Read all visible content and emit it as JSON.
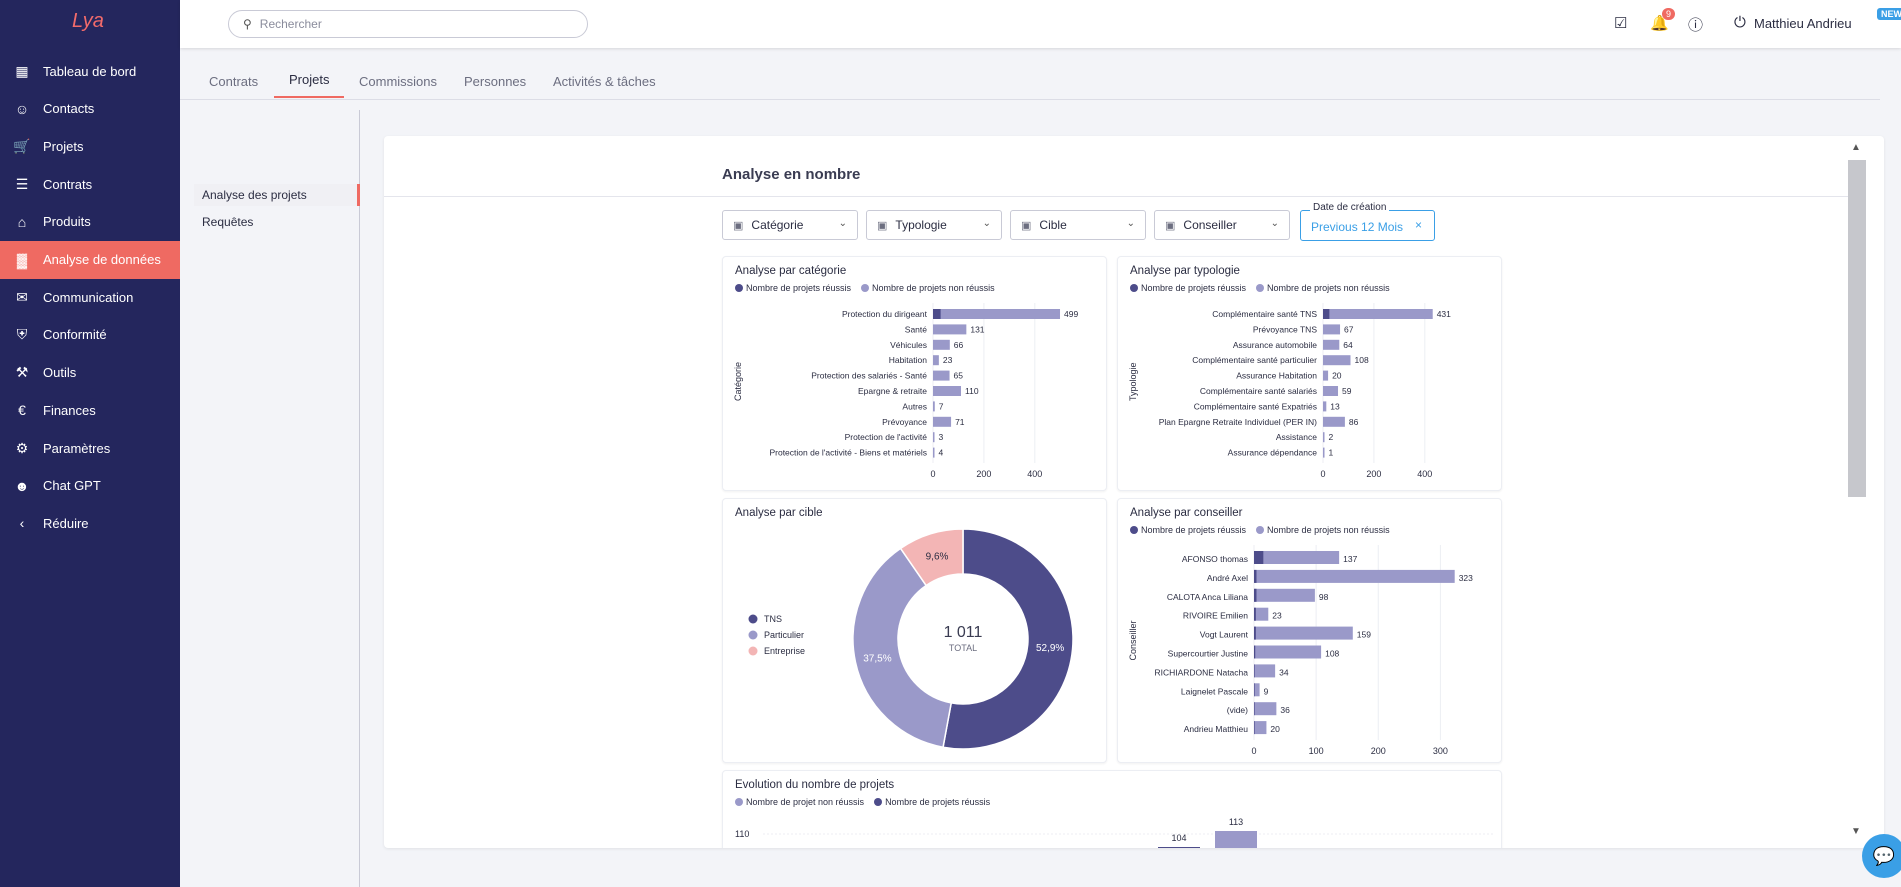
{
  "app": {
    "logo": "Lya"
  },
  "sidebar": {
    "items": [
      {
        "label": "Tableau de bord",
        "icon": "dashboard-icon"
      },
      {
        "label": "Contacts",
        "icon": "people-icon"
      },
      {
        "label": "Projets",
        "icon": "cart-icon"
      },
      {
        "label": "Contrats",
        "icon": "document-icon"
      },
      {
        "label": "Produits",
        "icon": "store-icon"
      },
      {
        "label": "Analyse de données",
        "icon": "chart-icon",
        "active": true
      },
      {
        "label": "Communication",
        "icon": "message-icon"
      },
      {
        "label": "Conformité",
        "icon": "shield-icon"
      },
      {
        "label": "Outils",
        "icon": "tools-icon"
      },
      {
        "label": "Finances",
        "icon": "euro-icon"
      },
      {
        "label": "Paramètres",
        "icon": "gear-icon"
      },
      {
        "label": "Chat GPT",
        "icon": "robot-icon"
      },
      {
        "label": "Réduire",
        "icon": "chevron-left-icon"
      }
    ]
  },
  "topbar": {
    "search_placeholder": "Rechercher",
    "notifications": "9",
    "new_badge": "NEW",
    "user": "Matthieu Andrieu"
  },
  "tabs": [
    "Contrats",
    "Projets",
    "Commissions",
    "Personnes",
    "Activités & tâches"
  ],
  "subnav": [
    "Analyse des projets",
    "Requêtes"
  ],
  "panel": {
    "title": "Analyse en nombre"
  },
  "filters": [
    "Catégorie",
    "Typologie",
    "Cible",
    "Conseiller"
  ],
  "date_filter": {
    "label": "Date de création",
    "value": "Previous 12 Mois"
  },
  "colors": {
    "success": "#4d4c8a",
    "fail": "#9a99c9",
    "entreprise": "#f3b5b5",
    "accent": "#ef6a62"
  },
  "chart_data": [
    {
      "type": "bar",
      "title": "Analyse par catégorie",
      "legend": [
        "Nombre de projets réussis",
        "Nombre de projets non réussis"
      ],
      "axis_label": "Catégorie",
      "categories": [
        "Protection du dirigeant",
        "Santé",
        "Véhicules",
        "Habitation",
        "Protection des salariés - Santé",
        "Epargne & retraite",
        "Autres",
        "Prévoyance",
        "Protection de l'activité",
        "Protection de l'activité - Biens et matériels"
      ],
      "values": [
        499,
        131,
        66,
        23,
        65,
        110,
        7,
        71,
        3,
        4
      ],
      "success": [
        30,
        0,
        0,
        0,
        0,
        0,
        0,
        0,
        0,
        0
      ],
      "ticks": [
        "0",
        "200",
        "400"
      ],
      "xmax": 550
    },
    {
      "type": "bar",
      "title": "Analyse par typologie",
      "legend": [
        "Nombre de projets réussis",
        "Nombre de projets non réussis"
      ],
      "axis_label": "Typologie",
      "categories": [
        "Complémentaire santé TNS",
        "Prévoyance TNS",
        "Assurance automobile",
        "Complémentaire santé particulier",
        "Assurance Habitation",
        "Complémentaire santé salariés",
        "Complémentaire santé Expatriés",
        "Plan Epargne Retraite Individuel (PER IN)",
        "Assistance",
        "Assurance dépendance"
      ],
      "values": [
        431,
        67,
        64,
        108,
        20,
        59,
        13,
        86,
        2,
        1
      ],
      "success": [
        25,
        0,
        0,
        0,
        0,
        0,
        0,
        0,
        0,
        0
      ],
      "ticks": [
        "0",
        "200",
        "400"
      ],
      "xmax": 550
    },
    {
      "type": "pie",
      "title": "Analyse par cible",
      "labels": [
        "TNS",
        "Particulier",
        "Entreprise"
      ],
      "values": [
        52.9,
        37.5,
        9.6
      ],
      "value_labels": [
        "52,9%",
        "37,5%",
        "9,6%"
      ],
      "total": "1 011",
      "total_label": "TOTAL"
    },
    {
      "type": "bar",
      "title": "Analyse par conseiller",
      "legend": [
        "Nombre de projets réussis",
        "Nombre de projets non réussis"
      ],
      "axis_label": "Conseiller",
      "categories": [
        "AFONSO thomas",
        "André Axel",
        "CALOTA Anca Liliana",
        "RIVOIRE Emilien",
        "Vogt Laurent",
        "Supercourtier Justine",
        "RICHIARDONE Natacha",
        "Laignelet Pascale",
        "(vide)",
        "Andrieu Matthieu"
      ],
      "values": [
        137,
        323,
        98,
        23,
        159,
        108,
        34,
        9,
        36,
        20
      ],
      "success": [
        15,
        4,
        4,
        3,
        3,
        2,
        1,
        1,
        1,
        1
      ],
      "ticks": [
        "0",
        "100",
        "200",
        "300"
      ],
      "xmax": 375
    },
    {
      "type": "bar",
      "title": "Evolution du nombre de projets",
      "legend": [
        "Nombre de projet non réussis",
        "Nombre de projets réussis"
      ],
      "y_tick": "110",
      "visible_value_labels": [
        "104",
        "113"
      ]
    }
  ]
}
